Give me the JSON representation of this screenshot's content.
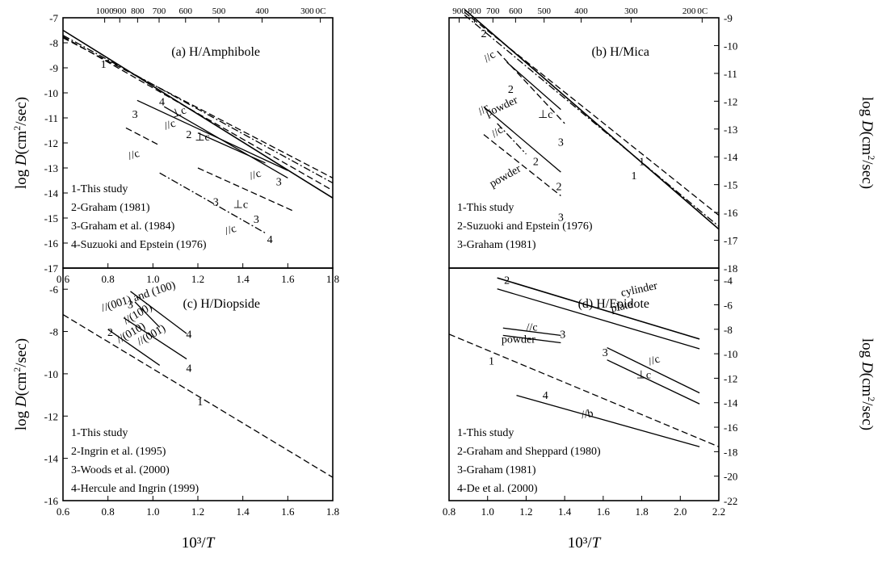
{
  "chart_data": [
    {
      "type": "line",
      "panel": "a",
      "title": "(a) H/Amphibole",
      "xlabel": "",
      "ylabel": "log D(cm2/sec)",
      "xlim": [
        0.6,
        1.8
      ],
      "ylim": [
        -17,
        -7
      ],
      "xticks": [
        0.6,
        0.8,
        1.0,
        1.2,
        1.4,
        1.6,
        1.8
      ],
      "yticks": [
        -17,
        -16,
        -15,
        -14,
        -13,
        -12,
        -11,
        -10,
        -9,
        -8,
        -7
      ],
      "top_axis": {
        "unit": "0C",
        "labels": [
          "1000",
          "900",
          "800",
          "700",
          "600",
          "500",
          "400",
          "300"
        ],
        "values": [
          1000,
          900,
          800,
          700,
          600,
          500,
          400,
          300
        ]
      },
      "legend": [
        "1-This study",
        "2-Graham (1981)",
        "3-Graham et al. (1984)",
        "4-Suzuoki and Epstein (1976)"
      ],
      "series": [
        {
          "style": "solid",
          "x": [
            0.6,
            1.8
          ],
          "y": [
            -7.5,
            -14.2
          ]
        },
        {
          "style": "dash",
          "x": [
            0.6,
            1.8
          ],
          "y": [
            -7.75,
            -13.9
          ]
        },
        {
          "style": "dashdot",
          "x": [
            0.6,
            1.8
          ],
          "y": [
            -7.7,
            -13.6
          ]
        },
        {
          "style": "dash",
          "x": [
            0.6,
            1.8
          ],
          "y": [
            -7.8,
            -13.4
          ]
        },
        {
          "style": "solid",
          "x": [
            0.93,
            1.6
          ],
          "y": [
            -10.3,
            -13.1
          ]
        },
        {
          "style": "solid",
          "x": [
            1.05,
            1.6
          ],
          "y": [
            -10.55,
            -13.4
          ]
        },
        {
          "style": "solid",
          "x": [
            1.2,
            1.5
          ],
          "y": [
            -11.6,
            -12.8
          ]
        },
        {
          "style": "dash",
          "x": [
            0.88,
            1.03
          ],
          "y": [
            -11.4,
            -12.1
          ]
        },
        {
          "style": "dash",
          "x": [
            1.2,
            1.62
          ],
          "y": [
            -13.0,
            -14.7
          ]
        },
        {
          "style": "dashdot",
          "x": [
            1.03,
            1.5
          ],
          "y": [
            -13.2,
            -15.6
          ]
        }
      ],
      "annotations": [
        "1",
        "4",
        "3",
        "//c",
        "⊥c",
        "2",
        "⊥c",
        "//c",
        "3",
        "3",
        "//c",
        "3",
        "⊥c",
        "//c",
        "4"
      ]
    },
    {
      "type": "line",
      "panel": "b",
      "title": "(b) H/Mica",
      "xlabel": "",
      "ylabel": "log D(cm2/sec)",
      "xlim": [
        0.8,
        2.2
      ],
      "ylim": [
        -18,
        -9
      ],
      "yticks": [
        -18,
        -17,
        -16,
        -15,
        -14,
        -13,
        -12,
        -11,
        -10,
        -9
      ],
      "top_axis": {
        "unit": "0C",
        "labels": [
          "900",
          "800",
          "700",
          "600",
          "500",
          "400",
          "300",
          "200"
        ],
        "values": [
          900,
          800,
          700,
          600,
          500,
          400,
          300,
          200
        ]
      },
      "legend": [
        "1-This study",
        "2-Suzuoki and Epstein (1976)",
        "3-Graham (1981)"
      ],
      "series": [
        {
          "style": "solid",
          "x": [
            0.88,
            2.2
          ],
          "y": [
            -8.7,
            -16.6
          ]
        },
        {
          "style": "dash",
          "x": [
            0.88,
            2.2
          ],
          "y": [
            -8.8,
            -16.1
          ]
        },
        {
          "style": "dashdot",
          "x": [
            0.88,
            2.2
          ],
          "y": [
            -8.9,
            -16.5
          ]
        },
        {
          "style": "dash",
          "x": [
            1.05,
            1.4
          ],
          "y": [
            -10.2,
            -12.8
          ]
        },
        {
          "style": "solid",
          "x": [
            1.1,
            1.38
          ],
          "y": [
            -10.6,
            -12.3
          ]
        },
        {
          "style": "solid",
          "x": [
            0.98,
            1.38
          ],
          "y": [
            -12.2,
            -14.55
          ]
        },
        {
          "style": "dashdot",
          "x": [
            1.05,
            1.2
          ],
          "y": [
            -12.8,
            -13.9
          ]
        },
        {
          "style": "dash",
          "x": [
            0.98,
            1.38
          ],
          "y": [
            -13.2,
            -15.4
          ]
        }
      ],
      "annotations": [
        "2",
        "//c",
        "2",
        "powder",
        "⊥c",
        "3",
        "//c",
        "//c",
        "2",
        "powder",
        "2",
        "3",
        "1",
        "1"
      ]
    },
    {
      "type": "line",
      "panel": "c",
      "title": "(c) H/Diopside",
      "xlabel": "10³/T",
      "ylabel": "log D(cm2/sec)",
      "xlim": [
        0.6,
        1.8
      ],
      "ylim": [
        -16,
        -5
      ],
      "xticks": [
        0.6,
        0.8,
        1.0,
        1.2,
        1.4,
        1.6,
        1.8
      ],
      "yticks": [
        -16,
        -14,
        -12,
        -10,
        -8,
        -6
      ],
      "legend": [
        "1-This study",
        "2-Ingrin et al. (1995)",
        "3-Woods et al. (2000)",
        "4-Hercule and Ingrin (1999)"
      ],
      "series": [
        {
          "style": "dash",
          "x": [
            0.6,
            1.8
          ],
          "y": [
            -7.2,
            -14.9
          ]
        },
        {
          "style": "solid",
          "x": [
            0.8,
            1.03
          ],
          "y": [
            -7.9,
            -9.6
          ]
        },
        {
          "style": "solid",
          "x": [
            0.87,
            1.15
          ],
          "y": [
            -7.35,
            -9.3
          ]
        },
        {
          "style": "solid",
          "x": [
            0.92,
            1.03
          ],
          "y": [
            -6.6,
            -7.8
          ]
        },
        {
          "style": "solid",
          "x": [
            0.9,
            1.15
          ],
          "y": [
            -6.1,
            -8.1
          ]
        }
      ],
      "annotations": [
        "//(001) and (100)",
        "3",
        "//(100)",
        "//(010)",
        "//(001)",
        "4",
        "2",
        "4",
        "1"
      ]
    },
    {
      "type": "line",
      "panel": "d",
      "title": "(d) H/Epidote",
      "xlabel": "10³/T",
      "ylabel": "log D(cm2/sec)",
      "xlim": [
        0.8,
        2.2
      ],
      "ylim": [
        -22,
        -3
      ],
      "xticks": [
        0.8,
        1.0,
        1.2,
        1.4,
        1.6,
        1.8,
        2.0,
        2.2
      ],
      "yticks": [
        -22,
        -20,
        -18,
        -16,
        -14,
        -12,
        -10,
        -8,
        -6,
        -4
      ],
      "legend": [
        "1-This study",
        "2-Graham and Sheppard (1980)",
        "3-Graham (1981)",
        "4-De et al. (2000)"
      ],
      "series": [
        {
          "style": "solid",
          "x": [
            1.05,
            2.1
          ],
          "y": [
            -3.8,
            -8.8
          ]
        },
        {
          "style": "solid",
          "x": [
            1.05,
            2.1
          ],
          "y": [
            -4.7,
            -9.6
          ]
        },
        {
          "style": "solid",
          "x": [
            1.08,
            1.38
          ],
          "y": [
            -7.9,
            -8.5
          ]
        },
        {
          "style": "solid",
          "x": [
            1.08,
            1.38
          ],
          "y": [
            -8.5,
            -9.1
          ]
        },
        {
          "style": "solid",
          "x": [
            1.62,
            2.1
          ],
          "y": [
            -9.5,
            -13.2
          ]
        },
        {
          "style": "solid",
          "x": [
            1.62,
            2.1
          ],
          "y": [
            -10.5,
            -14.1
          ]
        },
        {
          "style": "dash",
          "x": [
            0.8,
            2.2
          ],
          "y": [
            -8.4,
            -17.6
          ]
        },
        {
          "style": "solid",
          "x": [
            1.15,
            2.1
          ],
          "y": [
            -13.4,
            -17.6
          ]
        }
      ],
      "annotations": [
        "2",
        "cylinder",
        "plate",
        "//c",
        "3",
        "powder",
        "3",
        "//c",
        "⊥c",
        "1",
        "4",
        "//b"
      ]
    }
  ]
}
